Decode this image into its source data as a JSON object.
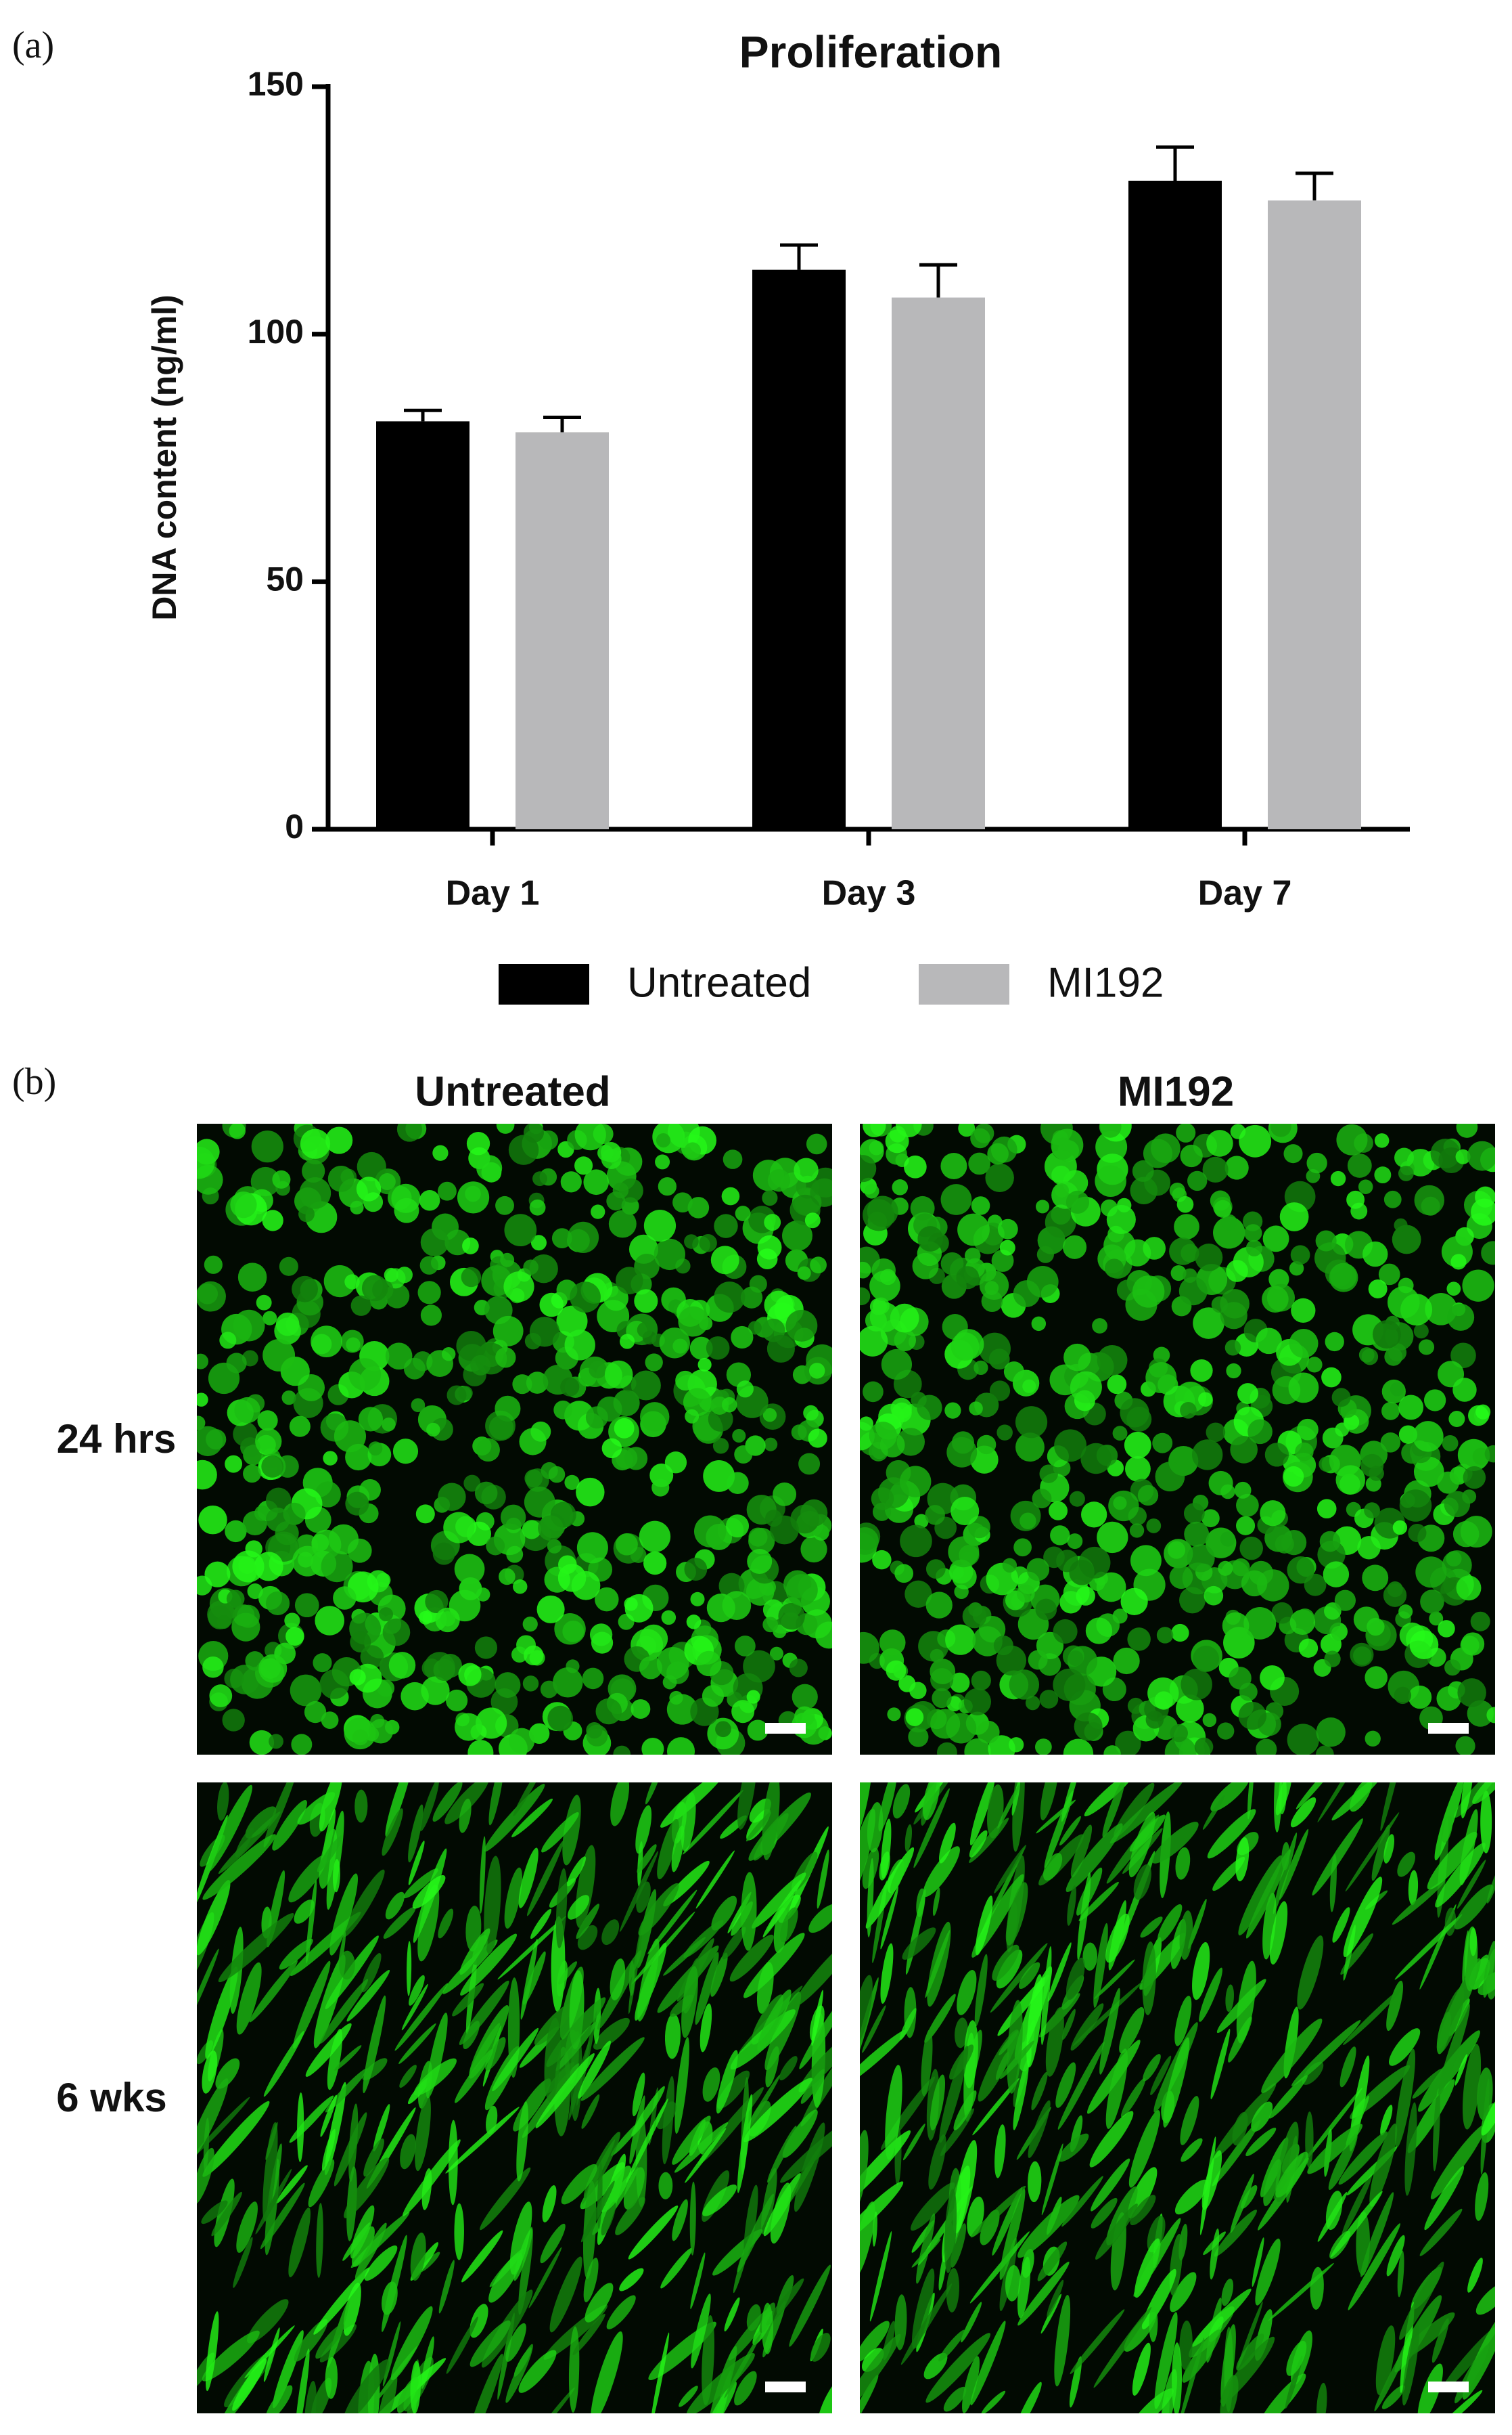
{
  "chart_data": {
    "type": "bar",
    "title": "Proliferation",
    "y_label": "DNA content (ng/ml)",
    "categories": [
      "Day 1",
      "Day 3",
      "Day 7"
    ],
    "series": [
      {
        "name": "Untreated",
        "color": "#000000",
        "values": [
          82.4,
          113,
          131
        ],
        "errors": [
          2.2,
          5,
          6.8
        ]
      },
      {
        "name": "MI192",
        "color": "#b8b8ba",
        "values": [
          80.2,
          107.4,
          127
        ],
        "errors": [
          3,
          6.6,
          5.5
        ]
      }
    ],
    "ylim": [
      0,
      150
    ],
    "yticks": [
      0,
      50,
      100,
      150
    ],
    "grid": false,
    "legend": "bottom"
  },
  "panel_labels": [
    "(a)",
    "(b)"
  ],
  "panel_b": {
    "columns": [
      "Untreated",
      "MI192"
    ],
    "rows": [
      "24 hrs",
      "6 wks"
    ]
  }
}
